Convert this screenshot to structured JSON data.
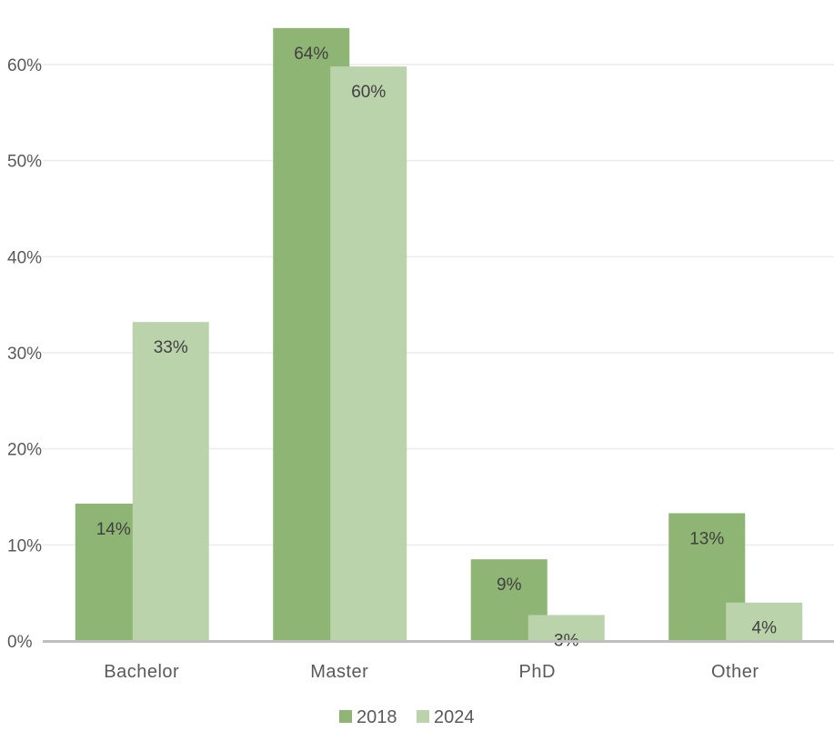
{
  "chart_data": {
    "type": "bar",
    "title": "",
    "xlabel": "",
    "ylabel": "",
    "categories": [
      "Bachelor",
      "Master",
      "PhD",
      "Other"
    ],
    "series": [
      {
        "name": "2018",
        "values": [
          14.3,
          63.8,
          8.5,
          13.3
        ],
        "labels": [
          "14%",
          "64%",
          "9%",
          "13%"
        ]
      },
      {
        "name": "2024",
        "values": [
          33.2,
          59.8,
          2.7,
          4.0
        ],
        "labels": [
          "33%",
          "60%",
          "3%",
          "4%"
        ]
      }
    ],
    "ylim": [
      0,
      60
    ],
    "yticks": [
      0,
      10,
      20,
      30,
      40,
      50,
      60
    ],
    "ytick_labels": [
      "0%",
      "10%",
      "20%",
      "30%",
      "40%",
      "50%",
      "60%"
    ],
    "grid": true,
    "legend_position": "bottom",
    "colors": {
      "series": [
        "#8eb574",
        "#bad3ab"
      ],
      "grid": "#ececec",
      "axis": "#bfbfbf",
      "text": "#595959",
      "label_text": "#404040"
    }
  }
}
